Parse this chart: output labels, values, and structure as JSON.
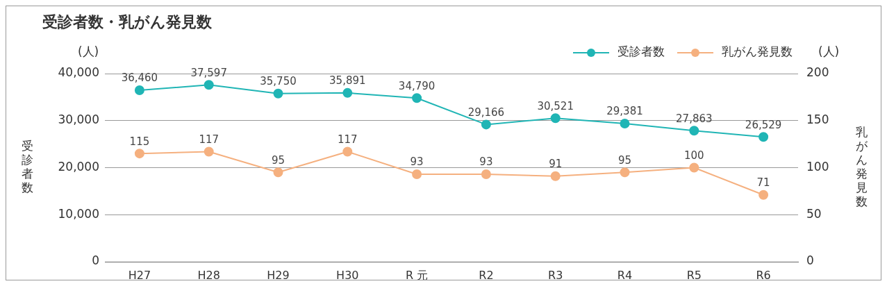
{
  "chart_data": {
    "type": "line",
    "title": "受診者数・乳がん発見数",
    "ylabel": "受診者数",
    "y2label": "乳がん発見数",
    "annotations": [
      "(人)",
      "(人)"
    ],
    "categories": [
      "H27",
      "H28",
      "H29",
      "H30",
      "R 元",
      "R2",
      "R3",
      "R4",
      "R5",
      "R6"
    ],
    "series": [
      {
        "name": "受診者数",
        "color": "#20b5b5",
        "values": [
          36460,
          37597,
          35750,
          35891,
          34790,
          29166,
          30521,
          29381,
          27863,
          26529
        ],
        "value_labels": [
          "36,460",
          "37,597",
          "35,750",
          "35,891",
          "34,790",
          "29,166",
          "30,521",
          "29,381",
          "27,863",
          "26,529"
        ]
      },
      {
        "name": "乳がん発見数",
        "color": "#f5b07f",
        "axis": "y2",
        "values": [
          115,
          117,
          95,
          117,
          93,
          93,
          91,
          95,
          100,
          71
        ],
        "value_labels": [
          "115",
          "117",
          "95",
          "117",
          "93",
          "93",
          "91",
          "95",
          "100",
          "71"
        ]
      }
    ],
    "ylim": [
      0,
      40000
    ],
    "yticks": [
      0,
      {
        "value": 10000,
        "label": "10,000"
      },
      {
        "value": 20000,
        "label": "20,000"
      },
      {
        "value": 30000,
        "label": "30,000"
      },
      {
        "value": 40000,
        "label": "40,000"
      }
    ],
    "y2lim": [
      0,
      200
    ],
    "y2ticks": [
      0,
      50,
      100,
      150,
      200
    ],
    "grid": "y",
    "legend": "top right",
    "marker": "circle",
    "line_style": "solid"
  }
}
